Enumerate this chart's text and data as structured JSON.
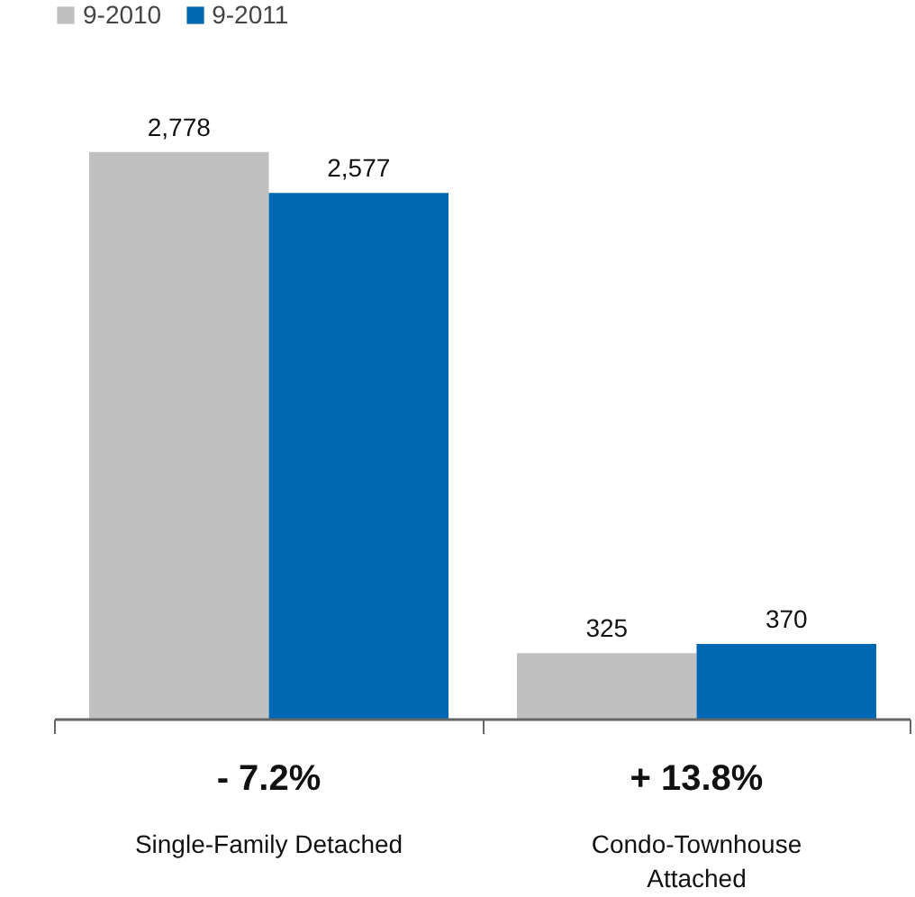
{
  "chart_data": {
    "type": "bar",
    "categories": [
      "Single-Family Detached",
      "Condo-Townhouse Attached"
    ],
    "series": [
      {
        "name": "9-2010",
        "color": "#c0c0c0",
        "values": [
          2778,
          325
        ],
        "value_labels": [
          "2,778",
          "325"
        ]
      },
      {
        "name": "9-2011",
        "color": "#0068b3",
        "values": [
          2577,
          370
        ],
        "value_labels": [
          "2,577",
          "370"
        ]
      }
    ],
    "legend": "top left",
    "grid": false,
    "annotations": [
      "- 7.2%",
      "+ 13.8%"
    ]
  }
}
